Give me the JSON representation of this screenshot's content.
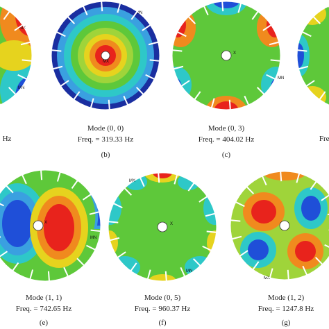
{
  "fragments": {
    "left_freq": "Hz",
    "right_freq": "Freq"
  },
  "left_markers": [
    "MX",
    "MN"
  ],
  "panels": [
    {
      "mode": "Mode (0, 0)",
      "freq": "Freq. = 319.33 Hz",
      "label": "(b)",
      "markers": [
        "MN",
        "MX"
      ]
    },
    {
      "mode": "Mode (0, 3)",
      "freq": "Freq. = 404.02 Hz",
      "label": "(c)",
      "markers": [
        "MN",
        "X"
      ]
    },
    {
      "mode": "Mode (1, 1)",
      "freq": "Freq. = 742.65 Hz",
      "label": "(e)",
      "markers": [
        "MN",
        "X"
      ]
    },
    {
      "mode": "Mode (0, 5)",
      "freq": "Freq. = 960.37 Hz",
      "label": "(f)",
      "markers": [
        "MX",
        "MN",
        "X"
      ]
    },
    {
      "mode": "Mode (1, 2)",
      "freq": "Freq. = 1247.8 Hz",
      "label": "(g)",
      "markers": [
        "MX"
      ]
    }
  ]
}
